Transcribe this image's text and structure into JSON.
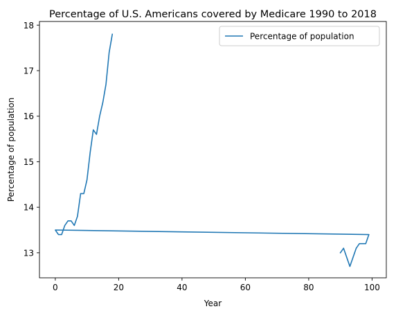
{
  "chart_data": {
    "type": "line",
    "title": "Percentage of U.S. Americans covered by Medicare 1990 to 2018",
    "xlabel": "Year",
    "ylabel": "Percentage of population",
    "xlim": [
      -5,
      104.5
    ],
    "ylim": [
      12.45,
      18.08
    ],
    "xticks": [
      0,
      20,
      40,
      60,
      80,
      100
    ],
    "yticks": [
      13,
      14,
      15,
      16,
      17,
      18
    ],
    "grid": false,
    "legend_position": "top-right",
    "series": [
      {
        "name": "Percentage of population",
        "color": "#1f77b4",
        "x": [
          90,
          91,
          92,
          93,
          94,
          95,
          96,
          97,
          98,
          99,
          0,
          1,
          2,
          3,
          4,
          5,
          6,
          7,
          8,
          9,
          10,
          11,
          12,
          13,
          14,
          15,
          16,
          17,
          18
        ],
        "values": [
          13.0,
          13.1,
          12.9,
          12.7,
          12.9,
          13.1,
          13.2,
          13.2,
          13.2,
          13.4,
          13.5,
          13.4,
          13.4,
          13.6,
          13.7,
          13.7,
          13.6,
          13.8,
          14.3,
          14.3,
          14.6,
          15.2,
          15.7,
          15.6,
          16.0,
          16.3,
          16.7,
          17.4,
          17.8
        ]
      }
    ]
  }
}
